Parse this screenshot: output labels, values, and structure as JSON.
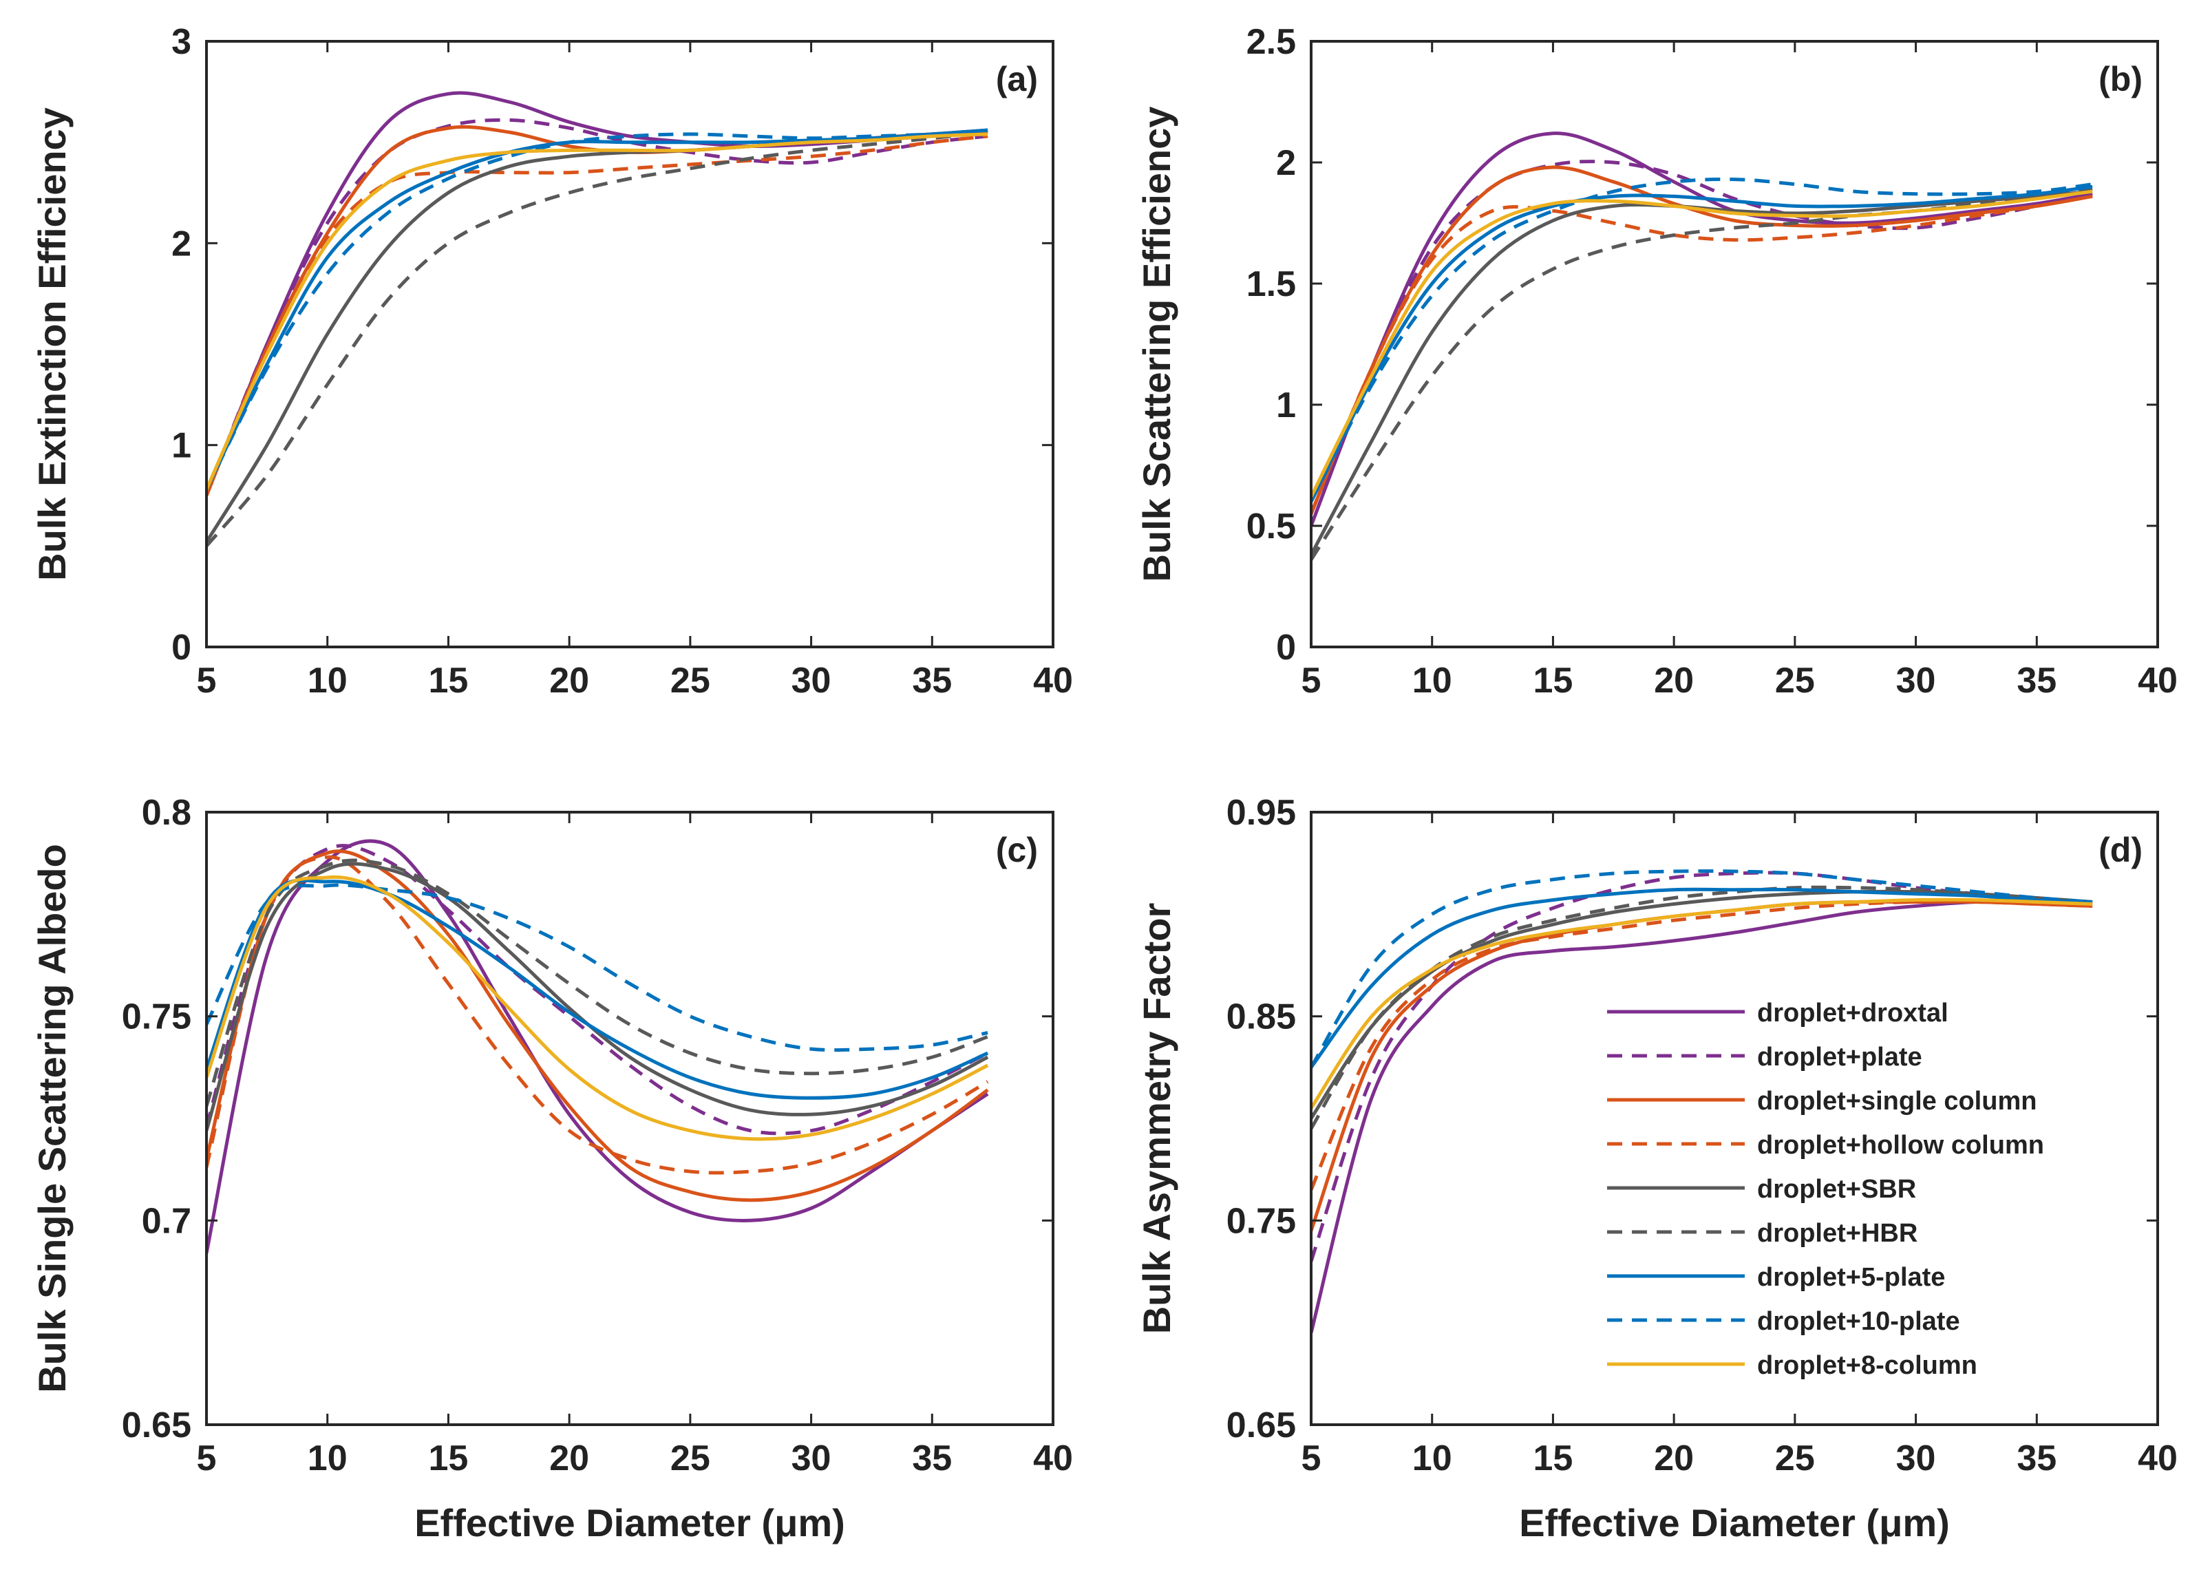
{
  "figure": {
    "legend": {
      "placement": "inside-lower-right of panel (d)",
      "entries": [
        {
          "key": "droxtal",
          "label": "droplet+droxtal",
          "color": "#7E2F8E",
          "dash": "solid"
        },
        {
          "key": "plate",
          "label": "droplet+plate",
          "color": "#7E2F8E",
          "dash": "dashed"
        },
        {
          "key": "single",
          "label": "droplet+single column",
          "color": "#D95319",
          "dash": "solid"
        },
        {
          "key": "hollow",
          "label": "droplet+hollow column",
          "color": "#D95319",
          "dash": "dashed"
        },
        {
          "key": "sbr",
          "label": "droplet+SBR",
          "color": "#595959",
          "dash": "solid"
        },
        {
          "key": "hbr",
          "label": "droplet+HBR",
          "color": "#595959",
          "dash": "dashed"
        },
        {
          "key": "p5",
          "label": "droplet+5-plate",
          "color": "#0072BD",
          "dash": "solid"
        },
        {
          "key": "p10",
          "label": "droplet+10-plate",
          "color": "#0072BD",
          "dash": "dashed"
        },
        {
          "key": "c8",
          "label": "droplet+8-column",
          "color": "#EDB120",
          "dash": "solid"
        }
      ]
    }
  },
  "chart_data": [
    {
      "id": "a",
      "type": "line",
      "panel_label": "(a)",
      "title": "",
      "xlabel": "",
      "ylabel": "Bulk Extinction Efficiency",
      "xlim": [
        5,
        40
      ],
      "ylim": [
        0,
        3
      ],
      "xticks": [
        "5",
        "10",
        "15",
        "20",
        "25",
        "30",
        "35",
        "40"
      ],
      "yticks": [
        "0",
        "1",
        "2",
        "3"
      ],
      "x": [
        5,
        7.5,
        10,
        12.5,
        15,
        17.5,
        20,
        22.5,
        25,
        27.5,
        30,
        32.5,
        35,
        37.3
      ],
      "series": [
        {
          "name": "droplet+droxtal",
          "values": [
            0.75,
            1.5,
            2.15,
            2.6,
            2.74,
            2.7,
            2.6,
            2.53,
            2.5,
            2.48,
            2.49,
            2.51,
            2.53,
            2.55
          ]
        },
        {
          "name": "droplet+plate",
          "values": [
            0.75,
            1.5,
            2.1,
            2.45,
            2.58,
            2.61,
            2.57,
            2.5,
            2.45,
            2.41,
            2.4,
            2.45,
            2.5,
            2.53
          ]
        },
        {
          "name": "droplet+single column",
          "values": [
            0.75,
            1.48,
            2.05,
            2.45,
            2.57,
            2.55,
            2.48,
            2.45,
            2.46,
            2.48,
            2.5,
            2.52,
            2.54,
            2.55
          ]
        },
        {
          "name": "droplet+hollow column",
          "values": [
            0.75,
            1.48,
            2.03,
            2.3,
            2.35,
            2.35,
            2.35,
            2.37,
            2.39,
            2.41,
            2.43,
            2.46,
            2.5,
            2.53
          ]
        },
        {
          "name": "droplet+SBR",
          "values": [
            0.52,
            1.0,
            1.55,
            1.98,
            2.25,
            2.38,
            2.43,
            2.45,
            2.46,
            2.48,
            2.5,
            2.52,
            2.54,
            2.56
          ]
        },
        {
          "name": "droplet+HBR",
          "values": [
            0.5,
            0.85,
            1.3,
            1.72,
            2.0,
            2.15,
            2.25,
            2.32,
            2.37,
            2.42,
            2.46,
            2.49,
            2.52,
            2.55
          ]
        },
        {
          "name": "droplet+5-plate",
          "values": [
            0.78,
            1.4,
            1.93,
            2.2,
            2.35,
            2.45,
            2.5,
            2.5,
            2.5,
            2.5,
            2.51,
            2.52,
            2.54,
            2.56
          ]
        },
        {
          "name": "droplet+10-plate",
          "values": [
            0.78,
            1.38,
            1.85,
            2.15,
            2.32,
            2.43,
            2.5,
            2.53,
            2.54,
            2.53,
            2.52,
            2.53,
            2.54,
            2.56
          ]
        },
        {
          "name": "droplet+8-column",
          "values": [
            0.78,
            1.45,
            2.0,
            2.3,
            2.41,
            2.45,
            2.46,
            2.46,
            2.46,
            2.48,
            2.5,
            2.51,
            2.53,
            2.54
          ]
        }
      ]
    },
    {
      "id": "b",
      "type": "line",
      "panel_label": "(b)",
      "title": "",
      "xlabel": "",
      "ylabel": "Bulk Scattering Efficiency",
      "xlim": [
        5,
        40
      ],
      "ylim": [
        0,
        2.5
      ],
      "xticks": [
        "5",
        "10",
        "15",
        "20",
        "25",
        "30",
        "35",
        "40"
      ],
      "yticks": [
        "0",
        "0.5",
        "1",
        "1.5",
        "2",
        "2.5"
      ],
      "x": [
        5,
        7.5,
        10,
        12.5,
        15,
        17.5,
        20,
        22.5,
        25,
        27.5,
        30,
        32.5,
        35,
        37.3
      ],
      "series": [
        {
          "name": "droplet+droxtal",
          "values": [
            0.5,
            1.15,
            1.7,
            2.02,
            2.12,
            2.05,
            1.92,
            1.8,
            1.76,
            1.75,
            1.77,
            1.8,
            1.83,
            1.87
          ]
        },
        {
          "name": "droplet+plate",
          "values": [
            0.55,
            1.15,
            1.65,
            1.9,
            1.99,
            2.0,
            1.95,
            1.85,
            1.78,
            1.74,
            1.73,
            1.77,
            1.82,
            1.87
          ]
        },
        {
          "name": "droplet+single column",
          "values": [
            0.55,
            1.15,
            1.62,
            1.9,
            1.98,
            1.92,
            1.83,
            1.76,
            1.74,
            1.74,
            1.76,
            1.79,
            1.82,
            1.86
          ]
        },
        {
          "name": "droplet+hollow column",
          "values": [
            0.55,
            1.15,
            1.6,
            1.8,
            1.8,
            1.75,
            1.7,
            1.68,
            1.69,
            1.71,
            1.74,
            1.78,
            1.82,
            1.86
          ]
        },
        {
          "name": "droplet+SBR",
          "values": [
            0.38,
            0.85,
            1.3,
            1.6,
            1.76,
            1.82,
            1.82,
            1.8,
            1.79,
            1.8,
            1.82,
            1.84,
            1.86,
            1.88
          ]
        },
        {
          "name": "droplet+HBR",
          "values": [
            0.36,
            0.75,
            1.12,
            1.4,
            1.56,
            1.65,
            1.7,
            1.73,
            1.75,
            1.78,
            1.8,
            1.83,
            1.86,
            1.89
          ]
        },
        {
          "name": "droplet+5-plate",
          "values": [
            0.6,
            1.1,
            1.5,
            1.72,
            1.82,
            1.86,
            1.86,
            1.84,
            1.82,
            1.82,
            1.83,
            1.85,
            1.87,
            1.9
          ]
        },
        {
          "name": "droplet+10-plate",
          "values": [
            0.6,
            1.08,
            1.45,
            1.68,
            1.8,
            1.88,
            1.92,
            1.93,
            1.91,
            1.88,
            1.87,
            1.87,
            1.88,
            1.91
          ]
        },
        {
          "name": "droplet+8-column",
          "values": [
            0.62,
            1.12,
            1.55,
            1.75,
            1.83,
            1.84,
            1.82,
            1.79,
            1.78,
            1.78,
            1.8,
            1.82,
            1.85,
            1.88
          ]
        }
      ]
    },
    {
      "id": "c",
      "type": "line",
      "panel_label": "(c)",
      "title": "",
      "xlabel": "Effective Diameter (μm)",
      "ylabel": "Bulk Single Scattering Albedo",
      "xlim": [
        5,
        40
      ],
      "ylim": [
        0.65,
        0.8
      ],
      "xticks": [
        "5",
        "10",
        "15",
        "20",
        "25",
        "30",
        "35",
        "40"
      ],
      "yticks": [
        "0.65",
        "0.7",
        "0.75",
        "0.8"
      ],
      "x": [
        5,
        7.5,
        10,
        12.5,
        15,
        17.5,
        20,
        22.5,
        25,
        27.5,
        30,
        32.5,
        35,
        37.3
      ],
      "series": [
        {
          "name": "droplet+droxtal",
          "values": [
            0.692,
            0.765,
            0.788,
            0.792,
            0.775,
            0.75,
            0.726,
            0.71,
            0.702,
            0.7,
            0.703,
            0.712,
            0.722,
            0.731
          ]
        },
        {
          "name": "droplet+plate",
          "values": [
            0.723,
            0.775,
            0.791,
            0.788,
            0.776,
            0.762,
            0.75,
            0.738,
            0.728,
            0.722,
            0.722,
            0.727,
            0.734,
            0.741
          ]
        },
        {
          "name": "droplet+single column",
          "values": [
            0.715,
            0.775,
            0.79,
            0.785,
            0.77,
            0.748,
            0.728,
            0.713,
            0.707,
            0.705,
            0.707,
            0.713,
            0.722,
            0.732
          ]
        },
        {
          "name": "droplet+hollow column",
          "values": [
            0.713,
            0.775,
            0.789,
            0.778,
            0.758,
            0.738,
            0.722,
            0.715,
            0.712,
            0.712,
            0.714,
            0.719,
            0.726,
            0.734
          ]
        },
        {
          "name": "droplet+SBR",
          "values": [
            0.722,
            0.772,
            0.786,
            0.786,
            0.779,
            0.766,
            0.752,
            0.74,
            0.732,
            0.727,
            0.726,
            0.728,
            0.733,
            0.74
          ]
        },
        {
          "name": "droplet+HBR",
          "values": [
            0.728,
            0.775,
            0.787,
            0.787,
            0.78,
            0.769,
            0.758,
            0.748,
            0.741,
            0.737,
            0.736,
            0.737,
            0.74,
            0.745
          ]
        },
        {
          "name": "droplet+5-plate",
          "values": [
            0.737,
            0.778,
            0.783,
            0.78,
            0.772,
            0.762,
            0.751,
            0.742,
            0.735,
            0.731,
            0.73,
            0.731,
            0.735,
            0.741
          ]
        },
        {
          "name": "droplet+10-plate",
          "values": [
            0.748,
            0.778,
            0.782,
            0.781,
            0.779,
            0.774,
            0.767,
            0.758,
            0.75,
            0.745,
            0.742,
            0.742,
            0.743,
            0.746
          ]
        },
        {
          "name": "droplet+8-column",
          "values": [
            0.735,
            0.777,
            0.784,
            0.78,
            0.768,
            0.752,
            0.737,
            0.727,
            0.722,
            0.72,
            0.721,
            0.725,
            0.731,
            0.738
          ]
        }
      ]
    },
    {
      "id": "d",
      "type": "line",
      "panel_label": "(d)",
      "title": "",
      "xlabel": "Effective Diameter (μm)",
      "ylabel": "Bulk Asymmetry Factor",
      "xlim": [
        5,
        40
      ],
      "ylim": [
        0.65,
        0.95
      ],
      "xticks": [
        "5",
        "10",
        "15",
        "20",
        "25",
        "30",
        "35",
        "40"
      ],
      "yticks": [
        "0.65",
        "0.75",
        "0.85",
        "0.95"
      ],
      "x": [
        5,
        7.5,
        10,
        12.5,
        15,
        17.5,
        20,
        22.5,
        25,
        27.5,
        30,
        32.5,
        35,
        37.3
      ],
      "series": [
        {
          "name": "droplet+droxtal",
          "values": [
            0.695,
            0.81,
            0.855,
            0.877,
            0.882,
            0.884,
            0.887,
            0.891,
            0.896,
            0.901,
            0.904,
            0.906,
            0.906,
            0.905
          ]
        },
        {
          "name": "droplet+plate",
          "values": [
            0.73,
            0.82,
            0.865,
            0.89,
            0.903,
            0.912,
            0.918,
            0.92,
            0.92,
            0.917,
            0.913,
            0.91,
            0.907,
            0.905
          ]
        },
        {
          "name": "droplet+single column",
          "values": [
            0.745,
            0.83,
            0.865,
            0.882,
            0.89,
            0.895,
            0.899,
            0.902,
            0.905,
            0.906,
            0.906,
            0.906,
            0.905,
            0.904
          ]
        },
        {
          "name": "droplet+hollow column",
          "values": [
            0.765,
            0.835,
            0.868,
            0.883,
            0.889,
            0.893,
            0.897,
            0.9,
            0.903,
            0.905,
            0.906,
            0.906,
            0.905,
            0.904
          ]
        },
        {
          "name": "droplet+SBR",
          "values": [
            0.8,
            0.845,
            0.872,
            0.887,
            0.895,
            0.901,
            0.905,
            0.908,
            0.91,
            0.911,
            0.911,
            0.91,
            0.908,
            0.906
          ]
        },
        {
          "name": "droplet+HBR",
          "values": [
            0.795,
            0.845,
            0.873,
            0.889,
            0.897,
            0.903,
            0.908,
            0.911,
            0.913,
            0.913,
            0.912,
            0.91,
            0.908,
            0.906
          ]
        },
        {
          "name": "droplet+5-plate",
          "values": [
            0.825,
            0.865,
            0.89,
            0.902,
            0.907,
            0.91,
            0.912,
            0.912,
            0.912,
            0.911,
            0.91,
            0.909,
            0.907,
            0.906
          ]
        },
        {
          "name": "droplet+10-plate",
          "values": [
            0.825,
            0.875,
            0.9,
            0.912,
            0.917,
            0.92,
            0.921,
            0.921,
            0.92,
            0.917,
            0.914,
            0.911,
            0.908,
            0.906
          ]
        },
        {
          "name": "droplet+8-column",
          "values": [
            0.805,
            0.85,
            0.873,
            0.885,
            0.891,
            0.895,
            0.899,
            0.902,
            0.905,
            0.906,
            0.907,
            0.907,
            0.906,
            0.905
          ]
        }
      ]
    }
  ]
}
